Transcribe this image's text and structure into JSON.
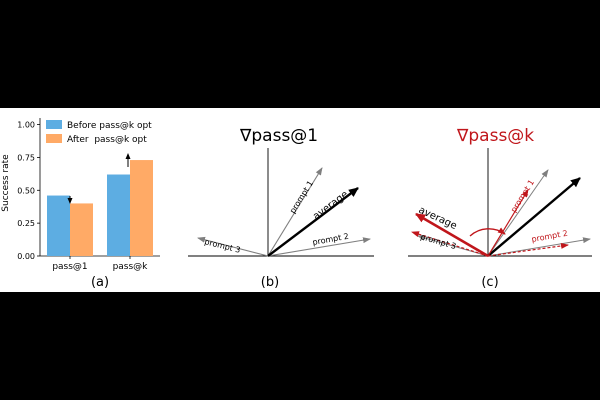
{
  "chart_data": [
    {
      "type": "bar",
      "panel_label": "(a)",
      "ylabel": "Success rate",
      "yticks": [
        "0.00",
        "0.25",
        "0.50",
        "0.75",
        "1.00"
      ],
      "ylim": [
        0,
        1.05
      ],
      "categories": [
        "pass@1",
        "pass@k"
      ],
      "series": [
        {
          "name": "Before pass@k opt",
          "values": [
            0.46,
            0.62
          ],
          "color": "#5DADE2"
        },
        {
          "name": "After  pass@k opt",
          "values": [
            0.4,
            0.73
          ],
          "color": "#FFAA66"
        }
      ],
      "annotations": [
        "down-arrow over pass@1",
        "up-arrow over pass@k"
      ],
      "legend": "top-left"
    },
    {
      "type": "diagram",
      "panel_label": "(b)",
      "title": "∇pass@1",
      "vectors": [
        {
          "name": "prompt 1",
          "style": "gray"
        },
        {
          "name": "prompt 2",
          "style": "gray"
        },
        {
          "name": "prompt 3",
          "style": "gray"
        },
        {
          "name": "average",
          "style": "bold-black"
        }
      ]
    },
    {
      "type": "diagram",
      "panel_label": "(c)",
      "title": "∇pass@k",
      "title_color": "#C0161B",
      "vectors": [
        {
          "name": "prompt 1",
          "style": "red-solid"
        },
        {
          "name": "prompt 2",
          "style": "red-dashed"
        },
        {
          "name": "prompt 3",
          "style": "red-dashed"
        },
        {
          "name": "average",
          "style": "bold-red"
        }
      ]
    }
  ]
}
